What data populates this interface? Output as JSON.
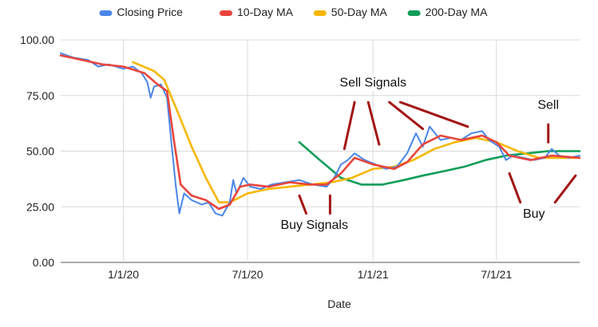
{
  "chart_data": {
    "type": "line",
    "title": "",
    "xlabel": "Date",
    "ylabel": "",
    "x_start": "2019-10-01",
    "x_end": "2021-10-31",
    "xlim": [
      "2019-10-01",
      "2021-10-31"
    ],
    "ylim": [
      0,
      100
    ],
    "grid": true,
    "legend_position": "top",
    "x_ticks": [
      {
        "label": "1/1/20",
        "date": "2020-01-01"
      },
      {
        "label": "7/1/20",
        "date": "2020-07-01"
      },
      {
        "label": "1/1/21",
        "date": "2021-01-01"
      },
      {
        "label": "7/1/21",
        "date": "2021-07-01"
      }
    ],
    "y_ticks": [
      {
        "label": "0.00",
        "value": 0
      },
      {
        "label": "25.00",
        "value": 25
      },
      {
        "label": "50.00",
        "value": 50
      },
      {
        "label": "75.00",
        "value": 75
      },
      {
        "label": "100.00",
        "value": 100
      }
    ],
    "series": [
      {
        "name": "Closing Price",
        "color": "#4a86e8",
        "points": [
          [
            "2019-10-01",
            94
          ],
          [
            "2019-10-20",
            92
          ],
          [
            "2019-11-10",
            91
          ],
          [
            "2019-11-25",
            88
          ],
          [
            "2019-12-10",
            89
          ],
          [
            "2020-01-01",
            87
          ],
          [
            "2020-01-15",
            88
          ],
          [
            "2020-01-28",
            85
          ],
          [
            "2020-02-05",
            81
          ],
          [
            "2020-02-10",
            74
          ],
          [
            "2020-02-15",
            79
          ],
          [
            "2020-02-25",
            80
          ],
          [
            "2020-03-05",
            74
          ],
          [
            "2020-03-12",
            52
          ],
          [
            "2020-03-18",
            34
          ],
          [
            "2020-03-23",
            22
          ],
          [
            "2020-03-30",
            31
          ],
          [
            "2020-04-10",
            28
          ],
          [
            "2020-04-25",
            26
          ],
          [
            "2020-05-05",
            27
          ],
          [
            "2020-05-15",
            22
          ],
          [
            "2020-05-25",
            21
          ],
          [
            "2020-06-05",
            27
          ],
          [
            "2020-06-10",
            37
          ],
          [
            "2020-06-15",
            31
          ],
          [
            "2020-06-25",
            38
          ],
          [
            "2020-07-05",
            34
          ],
          [
            "2020-07-20",
            33
          ],
          [
            "2020-08-05",
            35
          ],
          [
            "2020-08-25",
            36
          ],
          [
            "2020-09-15",
            37
          ],
          [
            "2020-10-05",
            35
          ],
          [
            "2020-10-25",
            34
          ],
          [
            "2020-11-05",
            38
          ],
          [
            "2020-11-15",
            44
          ],
          [
            "2020-11-25",
            46
          ],
          [
            "2020-12-05",
            49
          ],
          [
            "2020-12-20",
            46
          ],
          [
            "2021-01-05",
            44
          ],
          [
            "2021-01-20",
            42
          ],
          [
            "2021-02-05",
            43
          ],
          [
            "2021-02-20",
            49
          ],
          [
            "2021-03-05",
            58
          ],
          [
            "2021-03-15",
            52
          ],
          [
            "2021-03-25",
            61
          ],
          [
            "2021-04-10",
            55
          ],
          [
            "2021-04-25",
            56
          ],
          [
            "2021-05-10",
            55
          ],
          [
            "2021-05-25",
            58
          ],
          [
            "2021-06-10",
            59
          ],
          [
            "2021-06-20",
            55
          ],
          [
            "2021-07-05",
            52
          ],
          [
            "2021-07-15",
            46
          ],
          [
            "2021-07-25",
            48
          ],
          [
            "2021-08-10",
            47
          ],
          [
            "2021-08-25",
            46
          ],
          [
            "2021-09-10",
            47
          ],
          [
            "2021-09-20",
            51
          ],
          [
            "2021-10-01",
            48
          ],
          [
            "2021-10-15",
            47
          ],
          [
            "2021-10-31",
            48
          ]
        ]
      },
      {
        "name": "10-Day MA",
        "color": "#e8453c",
        "points": [
          [
            "2019-10-01",
            93
          ],
          [
            "2019-11-01",
            91
          ],
          [
            "2019-12-01",
            89
          ],
          [
            "2020-01-01",
            88
          ],
          [
            "2020-02-01",
            85
          ],
          [
            "2020-02-20",
            80
          ],
          [
            "2020-03-05",
            77
          ],
          [
            "2020-03-15",
            55
          ],
          [
            "2020-03-25",
            35
          ],
          [
            "2020-04-10",
            30
          ],
          [
            "2020-05-01",
            28
          ],
          [
            "2020-05-20",
            24
          ],
          [
            "2020-06-05",
            26
          ],
          [
            "2020-06-20",
            34
          ],
          [
            "2020-07-05",
            35
          ],
          [
            "2020-08-01",
            34
          ],
          [
            "2020-09-01",
            36
          ],
          [
            "2020-10-01",
            35
          ],
          [
            "2020-10-25",
            35
          ],
          [
            "2020-11-15",
            40
          ],
          [
            "2020-12-05",
            47
          ],
          [
            "2021-01-01",
            44
          ],
          [
            "2021-02-01",
            42
          ],
          [
            "2021-02-20",
            45
          ],
          [
            "2021-03-15",
            53
          ],
          [
            "2021-04-10",
            57
          ],
          [
            "2021-05-10",
            55
          ],
          [
            "2021-06-10",
            57
          ],
          [
            "2021-07-01",
            54
          ],
          [
            "2021-07-20",
            48
          ],
          [
            "2021-08-20",
            46
          ],
          [
            "2021-09-20",
            48
          ],
          [
            "2021-10-31",
            47
          ]
        ]
      },
      {
        "name": "50-Day MA",
        "color": "#f6b700",
        "points": [
          [
            "2020-01-15",
            90
          ],
          [
            "2020-02-15",
            86
          ],
          [
            "2020-03-01",
            82
          ],
          [
            "2020-03-20",
            68
          ],
          [
            "2020-04-10",
            52
          ],
          [
            "2020-05-01",
            38
          ],
          [
            "2020-05-20",
            27
          ],
          [
            "2020-06-05",
            27
          ],
          [
            "2020-07-01",
            31
          ],
          [
            "2020-08-01",
            33
          ],
          [
            "2020-09-01",
            34
          ],
          [
            "2020-10-01",
            35
          ],
          [
            "2020-11-01",
            36
          ],
          [
            "2020-12-01",
            38
          ],
          [
            "2021-01-01",
            42
          ],
          [
            "2021-02-01",
            43
          ],
          [
            "2021-03-01",
            46
          ],
          [
            "2021-04-01",
            51
          ],
          [
            "2021-05-01",
            54
          ],
          [
            "2021-06-01",
            56
          ],
          [
            "2021-07-01",
            54
          ],
          [
            "2021-08-01",
            50
          ],
          [
            "2021-09-01",
            47
          ],
          [
            "2021-10-31",
            47
          ]
        ]
      },
      {
        "name": "200-Day MA",
        "color": "#0f9d58",
        "points": [
          [
            "2020-09-15",
            54
          ],
          [
            "2020-10-15",
            46
          ],
          [
            "2020-11-15",
            38
          ],
          [
            "2020-12-15",
            35
          ],
          [
            "2021-01-15",
            35
          ],
          [
            "2021-02-15",
            37
          ],
          [
            "2021-03-15",
            39
          ],
          [
            "2021-04-15",
            41
          ],
          [
            "2021-05-15",
            43
          ],
          [
            "2021-06-15",
            46
          ],
          [
            "2021-07-15",
            48
          ],
          [
            "2021-08-15",
            49
          ],
          [
            "2021-09-15",
            50
          ],
          [
            "2021-10-31",
            50
          ]
        ]
      }
    ],
    "annotations": [
      {
        "text": "Sell Signals",
        "color": "#111111",
        "label_date": "2021-01-01",
        "label_value": 79,
        "arrows": [
          {
            "from": [
              "2020-12-05",
              72
            ],
            "to": [
              "2020-11-20",
              51
            ]
          },
          {
            "from": [
              "2020-12-25",
              72
            ],
            "to": [
              "2021-01-10",
              53
            ]
          },
          {
            "from": [
              "2021-01-25",
              72
            ],
            "to": [
              "2021-03-15",
              60
            ]
          },
          {
            "from": [
              "2021-02-10",
              72
            ],
            "to": [
              "2021-05-20",
              61
            ]
          }
        ]
      },
      {
        "text": "Buy Signals",
        "color": "#111111",
        "label_date": "2020-10-07",
        "label_value": 15,
        "arrows": [
          {
            "from": [
              "2020-09-25",
              22
            ],
            "to": [
              "2020-09-15",
              30
            ]
          },
          {
            "from": [
              "2020-10-30",
              22
            ],
            "to": [
              "2020-10-30",
              30
            ]
          }
        ]
      },
      {
        "text": "Sell",
        "color": "#111111",
        "label_date": "2021-09-15",
        "label_value": 69,
        "arrows": [
          {
            "from": [
              "2021-09-15",
              62
            ],
            "to": [
              "2021-09-15",
              54
            ]
          }
        ]
      },
      {
        "text": "Buy",
        "color": "#111111",
        "label_date": "2021-08-25",
        "label_value": 20,
        "arrows": [
          {
            "from": [
              "2021-08-05",
              27
            ],
            "to": [
              "2021-07-20",
              40
            ]
          },
          {
            "from": [
              "2021-09-25",
              27
            ],
            "to": [
              "2021-10-25",
              39
            ]
          }
        ]
      }
    ]
  }
}
